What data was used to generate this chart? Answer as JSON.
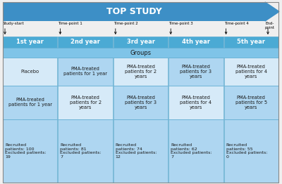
{
  "title": "TOP STUDY",
  "arrow_color": "#3D8FC6",
  "year_bg": "#4BAAD4",
  "year_text_color": "white",
  "year_labels": [
    "1st year",
    "2nd year",
    "3rd year",
    "4th year",
    "5th year"
  ],
  "timepoints": [
    "Study-start",
    "Time-point 1",
    "Time-point 2",
    "Time-point 3",
    "Time-point 4",
    "End-\npoint"
  ],
  "groups_label": "Groups",
  "groups_bg": "#7FC4E8",
  "groups_text_color": "#1A1A1A",
  "row1_cells": [
    "Placebo",
    "PMA-treated\npatients for 1 year",
    "PMA-treated\npatients for 2\nyears",
    "PMA-treated\npatients for 3\nyears",
    "PMA-treated\npatients for 4\nyears"
  ],
  "row2_cells": [
    "PMA-treated\npatients for 1 year",
    "PMA-treated\npatients for 2\nyears",
    "PMA-treated\npatients for 3\nyears",
    "PMA-treated\npatients for 4\nyears",
    "PMA-treated\npatients for 5\nyears"
  ],
  "row3_cells": [
    "Recruited\npatients: 100\nExcluded patients:\n19",
    "Recruited\npatients: 81\nExcluded patients:\n7",
    "Recruited\npatients: 74\nExcluded patients:\n12",
    "Recruited\npatients: 62\nExcluded patients:\n7",
    "Recruited\npatients: 55\nExcluded patients:\n0"
  ],
  "cell_bg_light": "#D6EAF8",
  "cell_bg_dark": "#AED6F1",
  "cell_text_color": "#1A1A1A",
  "border_color": "#5AAAD0",
  "fig_bg": "#EFEFEF",
  "outer_border": "#888888"
}
